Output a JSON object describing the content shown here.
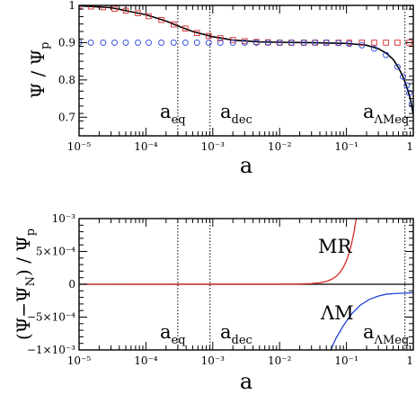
{
  "chart_data": [
    {
      "type": "line",
      "xscale": "log",
      "xlim": [
        1e-05,
        1
      ],
      "ylim": [
        0.65,
        1.0
      ],
      "xlabel": "a",
      "ylabel": "Ψ / Ψp",
      "xticklabels": [
        "10⁻⁵",
        "10⁻⁴",
        "10⁻³",
        "10⁻²",
        "10⁻¹",
        "1"
      ],
      "yticks": [
        0.7,
        0.8,
        0.9,
        1.0
      ],
      "yticklabels": [
        "0.7",
        "0.8",
        "0.9",
        "1"
      ],
      "grid": false,
      "annotations": [
        "a_eq",
        "a_dec",
        "a_ΛMeq"
      ],
      "vlines": {
        "a_eq": 0.0003,
        "a_dec": 0.00091,
        "a_ΛMeq": 0.75
      },
      "series": [
        {
          "style": "solid-black",
          "x": [
            1e-05,
            3e-05,
            0.0001,
            0.0002,
            0.0003,
            0.0005,
            0.001,
            0.002,
            0.005,
            0.01,
            0.03,
            0.1,
            0.2,
            0.3,
            0.4,
            0.5,
            0.6,
            0.7,
            0.8,
            0.9,
            1.0
          ],
          "y": [
            0.999,
            0.994,
            0.975,
            0.958,
            0.945,
            0.93,
            0.916,
            0.907,
            0.902,
            0.901,
            0.9,
            0.898,
            0.893,
            0.884,
            0.871,
            0.855,
            0.833,
            0.809,
            0.781,
            0.75,
            0.707
          ]
        },
        {
          "style": "red-square-markers",
          "color": "#d62728",
          "x": [
            1e-05,
            1.5e-05,
            2.3e-05,
            3.4e-05,
            5e-05,
            7.6e-05,
            0.00011,
            0.00017,
            0.00026,
            0.00039,
            0.00058,
            0.00087,
            0.0013,
            0.002,
            0.003,
            0.0045,
            0.0067,
            0.01,
            0.015,
            0.023,
            0.034,
            0.05,
            0.076,
            0.11,
            0.17,
            0.26,
            0.39,
            0.58,
            0.87
          ],
          "y": [
            0.999,
            0.997,
            0.995,
            0.991,
            0.986,
            0.979,
            0.971,
            0.961,
            0.949,
            0.938,
            0.926,
            0.918,
            0.912,
            0.907,
            0.904,
            0.902,
            0.901,
            0.9,
            0.9,
            0.9,
            0.9,
            0.9,
            0.9,
            0.9,
            0.9,
            0.9,
            0.9,
            0.9,
            0.9
          ]
        },
        {
          "style": "blue-circle-markers",
          "color": "#2442d6",
          "x": [
            1e-05,
            1.5e-05,
            2.3e-05,
            3.4e-05,
            5e-05,
            7.6e-05,
            0.00011,
            0.00017,
            0.00026,
            0.00039,
            0.00058,
            0.00087,
            0.0013,
            0.002,
            0.003,
            0.0045,
            0.0067,
            0.01,
            0.015,
            0.023,
            0.034,
            0.05,
            0.076,
            0.11,
            0.17,
            0.26,
            0.39,
            0.58,
            0.7,
            0.8,
            0.87,
            0.95
          ],
          "y": [
            0.9,
            0.9,
            0.9,
            0.9,
            0.9,
            0.9,
            0.9,
            0.9,
            0.9,
            0.9,
            0.9,
            0.9,
            0.9,
            0.9,
            0.9,
            0.9,
            0.9,
            0.9,
            0.9,
            0.9,
            0.9,
            0.9,
            0.899,
            0.897,
            0.893,
            0.884,
            0.867,
            0.835,
            0.809,
            0.785,
            0.765,
            0.735
          ]
        }
      ]
    },
    {
      "type": "line",
      "xscale": "log",
      "xlim": [
        1e-05,
        1
      ],
      "ylim": [
        -0.001,
        0.001
      ],
      "xlabel": "a",
      "ylabel": "(Ψ−ΨN) / Ψp",
      "xticklabels": [
        "10⁻⁵",
        "10⁻⁴",
        "10⁻³",
        "10⁻²",
        "10⁻¹",
        "1"
      ],
      "yticks": [
        -0.001,
        -0.0005,
        0,
        0.0005,
        0.001
      ],
      "yticklabels": [
        "−1×10⁻³",
        "−5×10⁻⁴",
        "0",
        "5×10⁻⁴",
        "10⁻³"
      ],
      "grid": false,
      "annotations": [
        "a_eq",
        "a_dec",
        "a_ΛMeq",
        "MR",
        "ΛM"
      ],
      "vlines": {
        "a_eq": 0.0003,
        "a_dec": 0.00091,
        "a_ΛMeq": 0.75
      },
      "series": [
        {
          "style": "solid-black",
          "x": [
            1e-05,
            1
          ],
          "y": [
            0,
            0
          ]
        },
        {
          "name": "MR",
          "style": "solid-red",
          "color": "#d62728",
          "x": [
            1e-05,
            0.01,
            0.02,
            0.03,
            0.04,
            0.05,
            0.06,
            0.07,
            0.08,
            0.09,
            0.1,
            0.11,
            0.12,
            0.13,
            0.14
          ],
          "y": [
            0,
            1e-06,
            4e-06,
            1e-05,
            2.2e-05,
            4.3e-05,
            7.5e-05,
            0.00012,
            0.00018,
            0.00026,
            0.00036,
            0.00048,
            0.00063,
            0.0008,
            0.001
          ]
        },
        {
          "name": "ΛM",
          "style": "solid-blue",
          "color": "#2442d6",
          "x": [
            0.058,
            0.07,
            0.09,
            0.12,
            0.16,
            0.22,
            0.3,
            0.4,
            0.55,
            0.75,
            1.0
          ],
          "y": [
            -0.001,
            -0.00082,
            -0.00063,
            -0.00045,
            -0.00032,
            -0.00023,
            -0.00018,
            -0.00015,
            -0.00014,
            -0.000135,
            -0.00013
          ]
        }
      ]
    }
  ]
}
